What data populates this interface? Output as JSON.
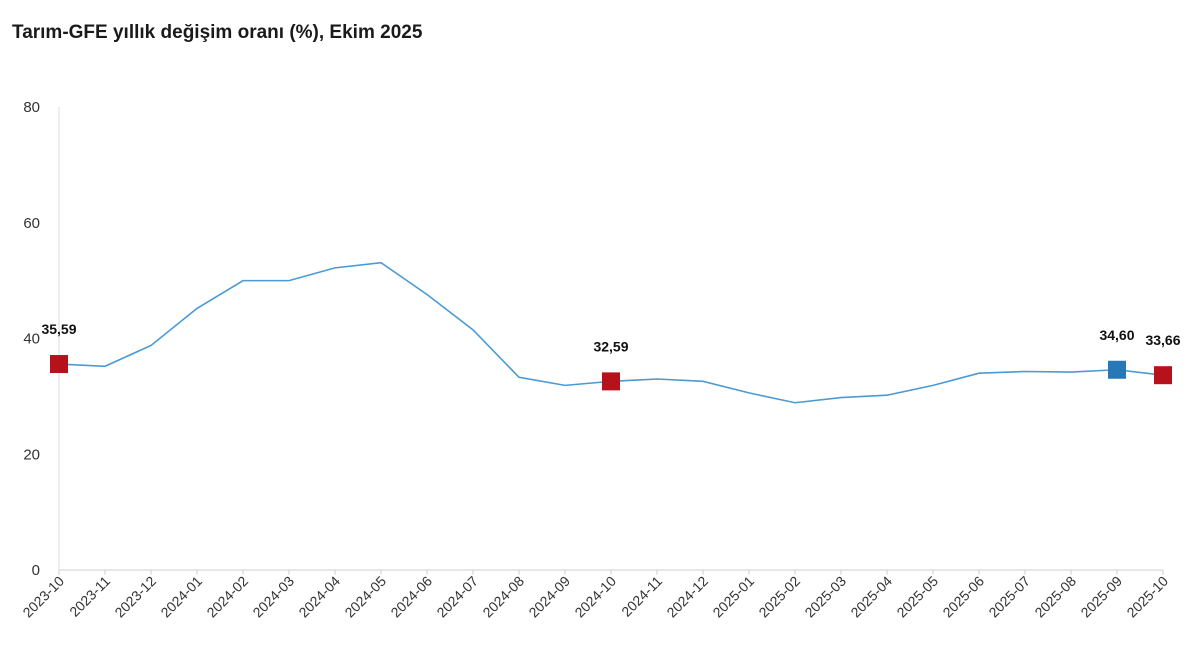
{
  "chart_data": {
    "type": "line",
    "title": "Tarım-GFE yıllık değişim oranı (%), Ekim 2025",
    "xlabel": "",
    "ylabel": "",
    "ylim": [
      0,
      80
    ],
    "yticks": [
      "0",
      "20",
      "40",
      "60",
      "80"
    ],
    "yticks_values": [
      0,
      20,
      40,
      60,
      80
    ],
    "grid": false,
    "legend": "none",
    "line_color": "#4a9ad4",
    "categories": [
      "2023-10",
      "2023-11",
      "2023-12",
      "2024-01",
      "2024-02",
      "2024-03",
      "2024-04",
      "2024-05",
      "2024-06",
      "2024-07",
      "2024-08",
      "2024-09",
      "2024-10",
      "2024-11",
      "2024-12",
      "2025-01",
      "2025-02",
      "2025-03",
      "2025-04",
      "2025-05",
      "2025-06",
      "2025-07",
      "2025-08",
      "2025-09",
      "2025-10"
    ],
    "series": [
      {
        "values": [
          35.59,
          35.2,
          38.8,
          45.2,
          50.0,
          50.0,
          52.2,
          53.1,
          47.6,
          41.5,
          33.3,
          31.9,
          32.59,
          33.0,
          32.6,
          30.6,
          28.9,
          29.8,
          30.2,
          31.9,
          34.0,
          34.3,
          34.2,
          34.6,
          33.66
        ]
      }
    ],
    "highlighted_points": [
      {
        "category": "2023-10",
        "value": 35.59,
        "label": "35,59",
        "color": "#b5121b"
      },
      {
        "category": "2024-10",
        "value": 32.59,
        "label": "32,59",
        "color": "#b5121b"
      },
      {
        "category": "2025-09",
        "value": 34.6,
        "label": "34,60",
        "color": "#2878b8"
      },
      {
        "category": "2025-10",
        "value": 33.66,
        "label": "33,66",
        "color": "#b5121b"
      }
    ]
  }
}
